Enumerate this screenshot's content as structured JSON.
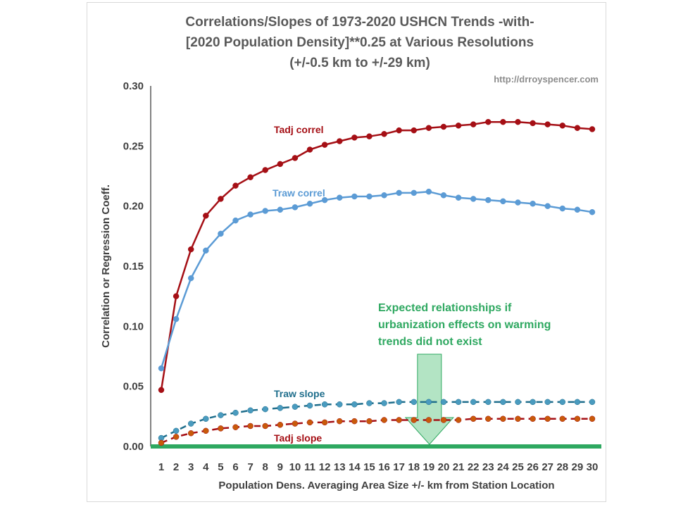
{
  "chart_data": {
    "type": "line",
    "title": [
      "Correlations/Slopes of 1973-2020 USHCN Trends  -with-",
      "[2020 Population Density]**0.25 at Various Resolutions",
      "(+/-0.5 km to +/-29 km)"
    ],
    "watermark": "http://drroyspencer.com",
    "xlabel": "Population Dens. Averaging Area Size +/- km from Station Location",
    "ylabel": "Correlation or Regression Coeff.",
    "ylim": [
      0,
      0.3
    ],
    "yticks": [
      "0.00",
      "0.05",
      "0.10",
      "0.15",
      "0.20",
      "0.25",
      "0.30"
    ],
    "x": [
      1,
      2,
      3,
      4,
      5,
      6,
      7,
      8,
      9,
      10,
      11,
      12,
      13,
      14,
      15,
      16,
      17,
      18,
      19,
      20,
      21,
      22,
      23,
      24,
      25,
      26,
      27,
      28,
      29,
      30
    ],
    "xticks": [
      "1",
      "2",
      "3",
      "4",
      "5",
      "6",
      "7",
      "8",
      "9",
      "10",
      "11",
      "12",
      "13",
      "14",
      "15",
      "16",
      "17",
      "18",
      "19",
      "20",
      "21",
      "22",
      "23",
      "24",
      "25",
      "26",
      "27",
      "28",
      "29",
      "30"
    ],
    "grid": false,
    "series": [
      {
        "name": "Tadj correl",
        "color": "#a50f15",
        "marker": "#a50f15",
        "style": "solid",
        "values": [
          0.047,
          0.125,
          0.164,
          0.192,
          0.206,
          0.217,
          0.224,
          0.23,
          0.235,
          0.24,
          0.247,
          0.251,
          0.254,
          0.257,
          0.258,
          0.26,
          0.263,
          0.263,
          0.265,
          0.266,
          0.267,
          0.268,
          0.27,
          0.27,
          0.27,
          0.269,
          0.268,
          0.267,
          0.265,
          0.264
        ]
      },
      {
        "name": "Traw correl",
        "color": "#5b9bd5",
        "marker": "#5b9bd5",
        "style": "solid",
        "values": [
          0.065,
          0.106,
          0.14,
          0.163,
          0.177,
          0.188,
          0.193,
          0.196,
          0.197,
          0.199,
          0.202,
          0.205,
          0.207,
          0.208,
          0.208,
          0.209,
          0.211,
          0.211,
          0.212,
          0.209,
          0.207,
          0.206,
          0.205,
          0.204,
          0.203,
          0.202,
          0.2,
          0.198,
          0.197,
          0.195
        ]
      },
      {
        "name": "Traw slope",
        "color": "#1f6e8c",
        "marker": "#4a9bbf",
        "style": "dashed",
        "values": [
          0.007,
          0.013,
          0.019,
          0.023,
          0.026,
          0.028,
          0.03,
          0.031,
          0.032,
          0.033,
          0.034,
          0.035,
          0.035,
          0.035,
          0.036,
          0.036,
          0.037,
          0.037,
          0.037,
          0.037,
          0.037,
          0.037,
          0.037,
          0.037,
          0.037,
          0.037,
          0.037,
          0.037,
          0.037,
          0.037
        ]
      },
      {
        "name": "Tadj slope",
        "color": "#a50f15",
        "marker": "#c85a0a",
        "style": "dashed",
        "values": [
          0.003,
          0.008,
          0.011,
          0.013,
          0.015,
          0.016,
          0.017,
          0.017,
          0.018,
          0.019,
          0.02,
          0.02,
          0.021,
          0.021,
          0.021,
          0.022,
          0.022,
          0.022,
          0.022,
          0.022,
          0.022,
          0.023,
          0.023,
          0.023,
          0.023,
          0.023,
          0.023,
          0.023,
          0.023,
          0.023
        ]
      }
    ],
    "annotation": {
      "lines": [
        "Expected relationships if",
        "urbanization effects on warming",
        "trends did not exist"
      ],
      "color": "#2ea860",
      "arrow_at_x": 19,
      "baseline_value": 0.0
    }
  }
}
